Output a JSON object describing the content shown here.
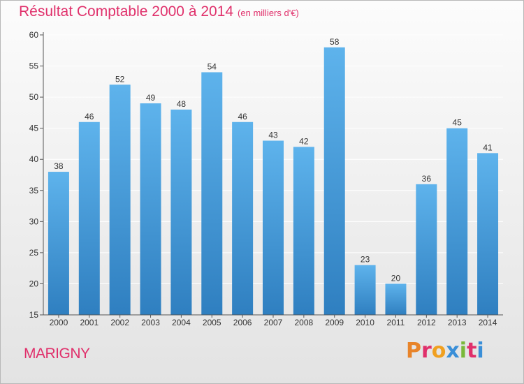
{
  "header": {
    "title": "Résultat Comptable 2000 à 2014",
    "subtitle": "(en milliers d'€)"
  },
  "footer": {
    "commune": "MARIGNY",
    "logo_text": "Proxiti",
    "logo_colors": [
      "#e8842a",
      "#e0306b",
      "#f0a020",
      "#3a8fd8",
      "#7ab83a",
      "#e0306b",
      "#3a8fd8"
    ]
  },
  "colors": {
    "accent": "#e0306b",
    "bar_top": "#5eb3ec",
    "bar_bottom": "#2f7fc0"
  },
  "chart_data": {
    "type": "bar",
    "title": "Résultat Comptable 2000 à 2014",
    "subtitle": "(en milliers d'€)",
    "categories": [
      "2000",
      "2001",
      "2002",
      "2003",
      "2004",
      "2005",
      "2006",
      "2007",
      "2008",
      "2009",
      "2010",
      "2011",
      "2012",
      "2013",
      "2014"
    ],
    "values": [
      38,
      46,
      52,
      49,
      48,
      54,
      46,
      43,
      42,
      58,
      23,
      20,
      36,
      45,
      41
    ],
    "ylim": [
      15,
      60
    ],
    "yticks": [
      15,
      20,
      25,
      30,
      35,
      40,
      45,
      50,
      55,
      60
    ],
    "grid": true,
    "xlabel": "",
    "ylabel": ""
  }
}
